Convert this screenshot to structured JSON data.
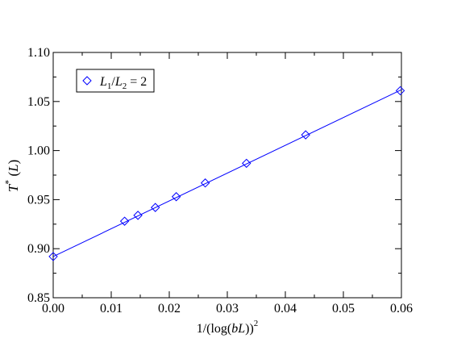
{
  "chart_data": {
    "type": "scatter",
    "xlim": [
      0.0,
      0.06
    ],
    "ylim": [
      0.85,
      1.1
    ],
    "x_ticks": [
      0.0,
      0.01,
      0.02,
      0.03,
      0.04,
      0.05,
      0.06
    ],
    "x_tick_labels": [
      "0.00",
      "0.01",
      "0.02",
      "0.03",
      "0.04",
      "0.05",
      "0.06"
    ],
    "y_ticks": [
      0.85,
      0.9,
      0.95,
      1.0,
      1.05,
      1.1
    ],
    "y_tick_labels": [
      "0.85",
      "0.90",
      "0.95",
      "1.00",
      "1.05",
      "1.10"
    ],
    "grid": false,
    "legend": {
      "position": "top-left"
    },
    "series": [
      {
        "marker": "diamond",
        "color": "#0000ff",
        "x": [
          0.0,
          0.0123,
          0.0146,
          0.0176,
          0.0212,
          0.0262,
          0.0333,
          0.0435,
          0.0598
        ],
        "y": [
          0.892,
          0.928,
          0.934,
          0.942,
          0.953,
          0.967,
          0.987,
          1.016,
          1.061
        ]
      }
    ],
    "fit_line": {
      "color": "#0000ff",
      "x": [
        0.0,
        0.06
      ],
      "y": [
        0.892,
        1.062
      ]
    }
  }
}
